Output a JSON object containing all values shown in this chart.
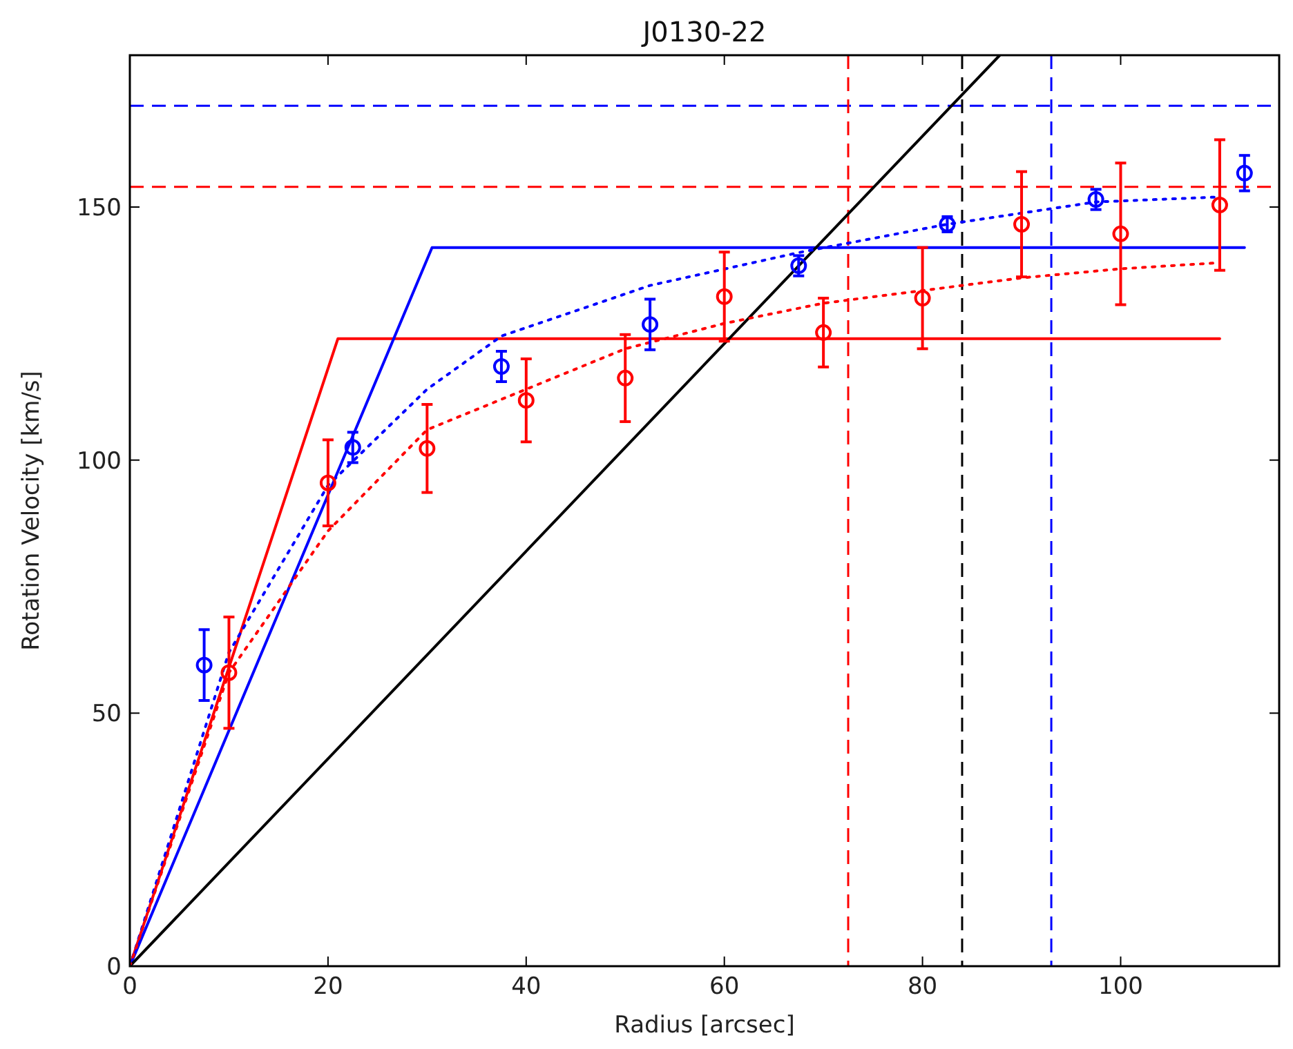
{
  "chart_data": {
    "type": "line",
    "title": "J0130-22",
    "xlabel": "Radius [arcsec]",
    "ylabel": "Rotation Velocity [km/s]",
    "xlim": [
      0,
      116
    ],
    "ylim": [
      0,
      180
    ],
    "xticks": [
      0,
      20,
      40,
      60,
      80,
      100
    ],
    "yticks": [
      0,
      50,
      100,
      150
    ],
    "grid": false,
    "series": [
      {
        "color": "#ff0000",
        "line_style": "solid",
        "x": [
          0,
          21,
          110
        ],
        "values": [
          0,
          124,
          124
        ]
      },
      {
        "color": "#0000ff",
        "line_style": "solid",
        "x": [
          0,
          30.5,
          112.5
        ],
        "values": [
          0,
          142,
          142
        ]
      },
      {
        "color": "#000000",
        "line_style": "solid",
        "x": [
          0,
          87.8
        ],
        "values": [
          0,
          180
        ]
      },
      {
        "color": "#0000ff",
        "line_style": "dotted",
        "x": [
          0,
          10,
          20,
          30,
          37.5,
          52.5,
          67.5,
          82.5,
          97.5,
          110
        ],
        "values": [
          0,
          62,
          95,
          114,
          124.5,
          134.5,
          141,
          146.6,
          151,
          152
        ]
      },
      {
        "color": "#ff0000",
        "line_style": "dotted",
        "x": [
          0,
          10,
          20,
          30,
          40,
          50,
          60,
          70,
          80,
          90,
          100,
          110
        ],
        "values": [
          0,
          58,
          86,
          106,
          114,
          122,
          127,
          131,
          133.5,
          136,
          137.8,
          139
        ]
      },
      {
        "type": "scatter",
        "color": "#0000ff",
        "marker": "circle",
        "x": [
          7.5,
          22.5,
          37.5,
          52.5,
          67.5,
          82.5,
          97.5,
          112.5
        ],
        "values": [
          59.5,
          102.5,
          118.5,
          126.8,
          138.4,
          146.6,
          151.5,
          156.7
        ],
        "errors": [
          7,
          3,
          3,
          5,
          2,
          1.5,
          2,
          3.5
        ]
      },
      {
        "type": "scatter",
        "color": "#ff0000",
        "marker": "circle",
        "x": [
          10,
          20,
          30,
          40,
          50,
          60,
          70,
          80,
          90,
          100,
          110
        ],
        "values": [
          58,
          95.5,
          102.3,
          111.8,
          116.2,
          132.3,
          125.2,
          132,
          146.6,
          144.7,
          150.4
        ],
        "errors": [
          11,
          8.5,
          8.7,
          8.2,
          8.6,
          8.8,
          6.8,
          10,
          10.4,
          14,
          12.9
        ]
      }
    ],
    "ref_lines": [
      {
        "axis": "y",
        "value": 170,
        "color": "#0000ff",
        "line_style": "dashed"
      },
      {
        "axis": "y",
        "value": 154,
        "color": "#ff0000",
        "line_style": "dashed"
      },
      {
        "axis": "x",
        "value": 72.5,
        "color": "#ff0000",
        "line_style": "dashed"
      },
      {
        "axis": "x",
        "value": 84,
        "color": "#000000",
        "line_style": "dashed"
      },
      {
        "axis": "x",
        "value": 93,
        "color": "#0000ff",
        "line_style": "dashed"
      }
    ]
  }
}
